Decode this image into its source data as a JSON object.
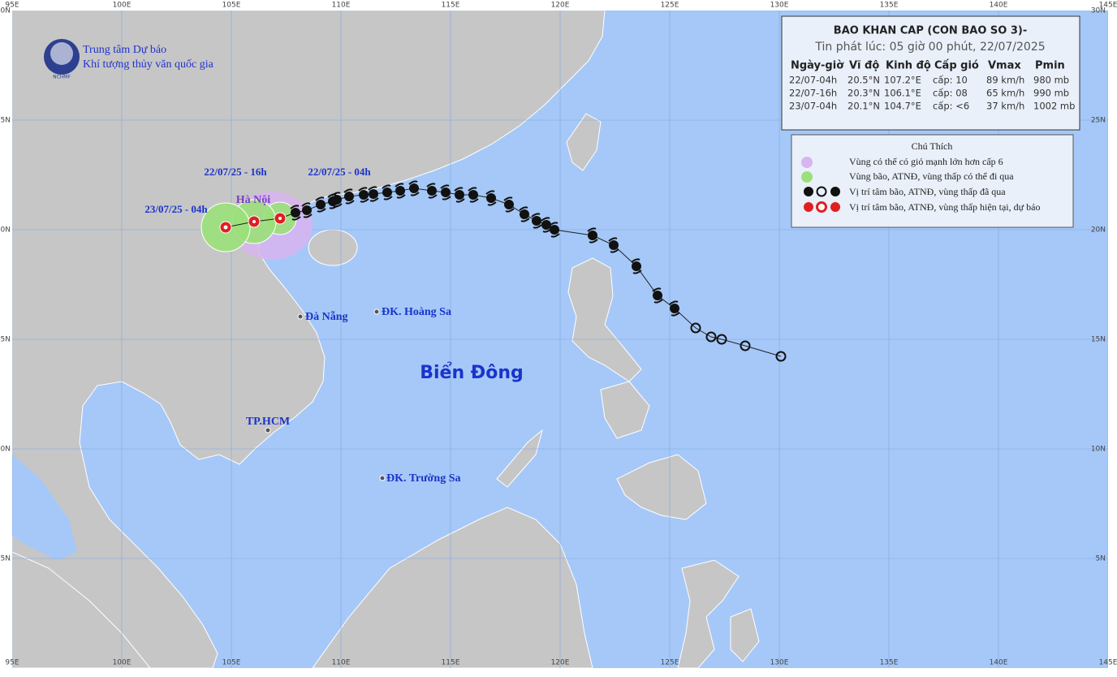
{
  "header": {
    "title": "BAO KHAN CAP (CON BAO SO 3)-",
    "issued": "Tin phát lúc: 05 giờ 00 phút, 22/07/2025"
  },
  "table": {
    "columns": [
      "Ngày-giờ",
      "Vĩ độ",
      "Kinh độ",
      "Cấp gió",
      "Vmax",
      "Pmin"
    ],
    "rows": [
      [
        "22/07-04h",
        "20.5°N",
        "107.2°E",
        "cấp: 10",
        "89 km/h",
        "980 mb"
      ],
      [
        "22/07-16h",
        "20.3°N",
        "106.1°E",
        "cấp: 08",
        "65 km/h",
        "990 mb"
      ],
      [
        "23/07-04h",
        "20.1°N",
        "104.7°E",
        "cấp: <6",
        "37 km/h",
        "1002 mb"
      ]
    ]
  },
  "legend": {
    "title": "Chú Thích",
    "items": [
      "Vùng có thể có gió mạnh lớn hơn cấp 6",
      "Vùng bão, ATNĐ, vùng thấp có thể đi qua",
      "Vị trí tâm bão, ATNĐ, vùng thấp đã qua",
      "Vị trí tâm bão, ATNĐ, vùng thấp hiện tại, dự báo"
    ]
  },
  "agency": {
    "line1": "Trung tâm Dự báo",
    "line2": "Khí tượng thủy văn quốc gia",
    "logo": "NCHMF"
  },
  "map": {
    "lon_labels": [
      "95E",
      "100E",
      "105E",
      "110E",
      "115E",
      "120E",
      "125E",
      "130E",
      "135E",
      "140E",
      "145E"
    ],
    "lat_labels": [
      "30N",
      "25N",
      "20N",
      "15N",
      "10N",
      "5N"
    ],
    "sea": "Biển Đông",
    "places": [
      "Hà Nội",
      "Đà Nẵng",
      "ĐK. Hoàng Sa",
      "TP.HCM",
      "ĐK. Trường Sa"
    ],
    "time_labels": [
      "22/07/25 - 16h",
      "22/07/25 - 04h",
      "23/07/25 - 04h"
    ]
  }
}
